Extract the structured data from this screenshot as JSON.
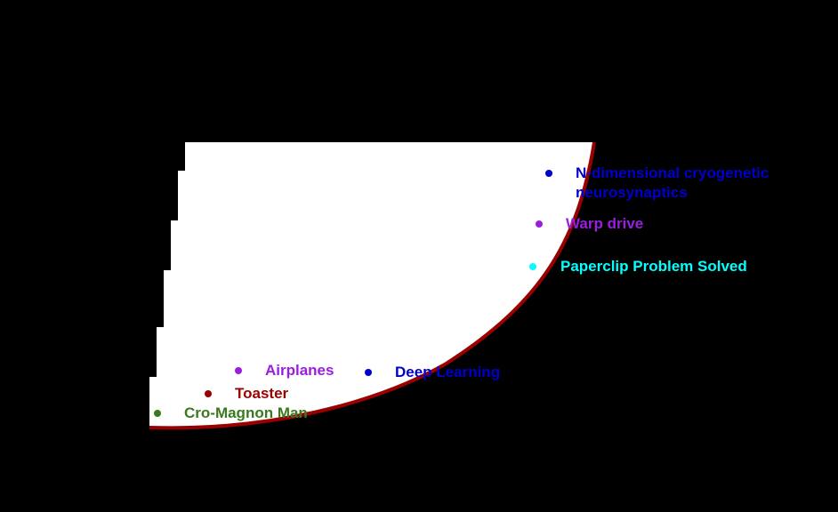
{
  "colors": {
    "background": "#000000",
    "region_fill": "#ffffff",
    "curve": "#990000"
  },
  "milestones": [
    {
      "label": "Cro-Magnon Man",
      "color": "#3a7a1e"
    },
    {
      "label": "Toaster",
      "color": "#990000"
    },
    {
      "label": "Airplanes",
      "color": "#9a1ee0"
    },
    {
      "label": "Deep Learning",
      "color": "#0000cc"
    },
    {
      "label": "Paperclip Problem Solved",
      "color": "#00ffff"
    },
    {
      "label": "Warp drive",
      "color": "#9a1ee0"
    },
    {
      "label": "N-dimensional cryogenetic neurosynaptics",
      "color": "#0000cc"
    }
  ]
}
